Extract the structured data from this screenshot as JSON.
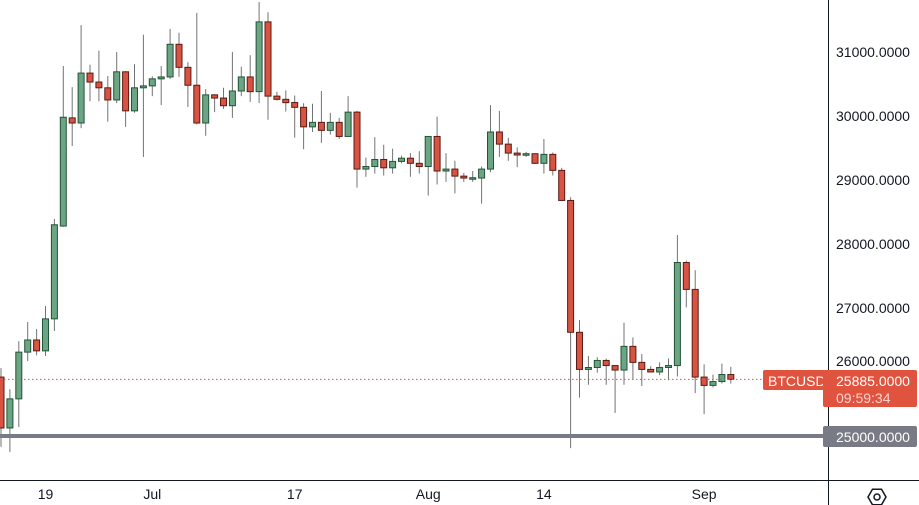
{
  "chart_data": {
    "type": "candlestick",
    "symbol": "BTCUSD",
    "last_price": "25885.0000",
    "countdown": "09:59:34",
    "horizontal_level": "25000.0000",
    "ylim": [
      24312,
      31812
    ],
    "y_ticks": [
      "31000.0000",
      "30000.0000",
      "29000.0000",
      "28000.0000",
      "27000.0000",
      "26000.0000"
    ],
    "y_tick_values": [
      31000,
      30000,
      29000,
      28000,
      27000,
      26000
    ],
    "x_ticks": [
      {
        "label": "19",
        "date": "2023-06-19"
      },
      {
        "label": "Jul",
        "date": "2023-07-01"
      },
      {
        "label": "17",
        "date": "2023-07-17"
      },
      {
        "label": "Aug",
        "date": "2023-08-01"
      },
      {
        "label": "14",
        "date": "2023-08-14"
      },
      {
        "label": "Sep",
        "date": "2023-09-01"
      }
    ],
    "grid": false,
    "colors": {
      "up": "#6ba583",
      "up_border": "#225437",
      "down": "#d75442",
      "down_border": "#5b1a13",
      "wick": "#737375",
      "level_line": "#787b86",
      "price_label": "#e0533f",
      "axis_text": "#131722"
    },
    "candles_columns": [
      "date",
      "open",
      "high",
      "low",
      "close"
    ],
    "candles": [
      [
        "2023-06-14",
        25920,
        26060,
        24830,
        25125
      ],
      [
        "2023-06-15",
        25125,
        25730,
        24750,
        25580
      ],
      [
        "2023-06-16",
        25580,
        26480,
        25140,
        26310
      ],
      [
        "2023-06-17",
        26310,
        26780,
        26170,
        26500
      ],
      [
        "2023-06-18",
        26500,
        26670,
        26260,
        26330
      ],
      [
        "2023-06-19",
        26330,
        27030,
        26250,
        26830
      ],
      [
        "2023-06-20",
        26830,
        28390,
        26640,
        28300
      ],
      [
        "2023-06-21",
        28280,
        30780,
        28270,
        29980
      ],
      [
        "2023-06-22",
        29970,
        30450,
        29530,
        29890
      ],
      [
        "2023-06-23",
        29890,
        31420,
        29810,
        30670
      ],
      [
        "2023-06-24",
        30670,
        30800,
        30230,
        30530
      ],
      [
        "2023-06-25",
        30530,
        31020,
        30230,
        30440
      ],
      [
        "2023-06-26",
        30440,
        30625,
        29910,
        30250
      ],
      [
        "2023-06-27",
        30250,
        31000,
        30200,
        30690
      ],
      [
        "2023-06-28",
        30690,
        30700,
        29830,
        30080
      ],
      [
        "2023-06-29",
        30080,
        30810,
        30050,
        30440
      ],
      [
        "2023-06-30",
        30440,
        31270,
        29360,
        30470
      ],
      [
        "2023-07-01",
        30470,
        30620,
        30310,
        30580
      ],
      [
        "2023-07-02",
        30580,
        30780,
        30170,
        30610
      ],
      [
        "2023-07-03",
        30610,
        31360,
        30580,
        31120
      ],
      [
        "2023-07-04",
        31120,
        31300,
        30610,
        30760
      ],
      [
        "2023-07-05",
        30760,
        30840,
        30140,
        30480
      ],
      [
        "2023-07-06",
        30480,
        31610,
        29870,
        29890
      ],
      [
        "2023-07-07",
        29890,
        30420,
        29690,
        30330
      ],
      [
        "2023-07-08",
        30330,
        30340,
        30060,
        30280
      ],
      [
        "2023-07-09",
        30280,
        30440,
        30110,
        30160
      ],
      [
        "2023-07-10",
        30160,
        31000,
        29970,
        30390
      ],
      [
        "2023-07-11",
        30390,
        30770,
        30310,
        30610
      ],
      [
        "2023-07-12",
        30610,
        30950,
        30220,
        30380
      ],
      [
        "2023-07-13",
        30380,
        31780,
        30200,
        31470
      ],
      [
        "2023-07-14",
        31470,
        31620,
        29940,
        30310
      ],
      [
        "2023-07-15",
        30310,
        30380,
        30240,
        30260
      ],
      [
        "2023-07-16",
        30260,
        30400,
        30070,
        30208
      ],
      [
        "2023-07-17",
        30210,
        30320,
        29660,
        30135
      ],
      [
        "2023-07-18",
        30135,
        30200,
        29480,
        29830
      ],
      [
        "2023-07-19",
        29830,
        30190,
        29750,
        29900
      ],
      [
        "2023-07-20",
        29900,
        30390,
        29580,
        29775
      ],
      [
        "2023-07-21",
        29775,
        30050,
        29710,
        29900
      ],
      [
        "2023-07-22",
        29900,
        29970,
        29640,
        29680
      ],
      [
        "2023-07-23",
        29680,
        30310,
        29680,
        30060
      ],
      [
        "2023-07-24",
        30060,
        30080,
        28880,
        29170
      ],
      [
        "2023-07-25",
        29170,
        29350,
        29050,
        29210
      ],
      [
        "2023-07-26",
        29210,
        29670,
        29100,
        29320
      ],
      [
        "2023-07-27",
        29320,
        29550,
        29070,
        29190
      ],
      [
        "2023-07-28",
        29190,
        29490,
        29100,
        29290
      ],
      [
        "2023-07-29",
        29290,
        29380,
        29260,
        29340
      ],
      [
        "2023-07-30",
        29340,
        29420,
        29050,
        29260
      ],
      [
        "2023-07-31",
        29260,
        29450,
        29100,
        29210
      ],
      [
        "2023-08-01",
        29210,
        29680,
        28755,
        29680
      ],
      [
        "2023-08-02",
        29680,
        29990,
        28930,
        29140
      ],
      [
        "2023-08-03",
        29140,
        29420,
        28970,
        29170
      ],
      [
        "2023-08-04",
        29170,
        29300,
        28790,
        29060
      ],
      [
        "2023-08-05",
        29060,
        29110,
        28970,
        29030
      ],
      [
        "2023-08-06",
        29030,
        29140,
        28970,
        29035
      ],
      [
        "2023-08-07",
        29030,
        29210,
        28630,
        29170
      ],
      [
        "2023-08-08",
        29170,
        30170,
        29120,
        29750
      ],
      [
        "2023-08-09",
        29750,
        30080,
        29360,
        29560
      ],
      [
        "2023-08-10",
        29560,
        29660,
        29300,
        29420
      ],
      [
        "2023-08-11",
        29420,
        29510,
        29200,
        29390
      ],
      [
        "2023-08-12",
        29390,
        29440,
        29360,
        29410
      ],
      [
        "2023-08-13",
        29410,
        29420,
        29250,
        29260
      ],
      [
        "2023-08-14",
        29260,
        29640,
        29100,
        29400
      ],
      [
        "2023-08-15",
        29400,
        29430,
        29070,
        29150
      ],
      [
        "2023-08-16",
        29150,
        29190,
        28680,
        28680
      ],
      [
        "2023-08-17",
        28680,
        28730,
        24810,
        26620
      ],
      [
        "2023-08-18",
        26620,
        26810,
        25600,
        26040
      ],
      [
        "2023-08-19",
        26040,
        26250,
        25800,
        26070
      ],
      [
        "2023-08-20",
        26070,
        26230,
        25990,
        26180
      ],
      [
        "2023-08-21",
        26180,
        26210,
        25800,
        26100
      ],
      [
        "2023-08-22",
        26100,
        26100,
        25360,
        26030
      ],
      [
        "2023-08-23",
        26030,
        26770,
        25800,
        26400
      ],
      [
        "2023-08-24",
        26400,
        26540,
        25890,
        26150
      ],
      [
        "2023-08-25",
        26150,
        26280,
        25780,
        26040
      ],
      [
        "2023-08-26",
        26040,
        26090,
        26000,
        26000
      ],
      [
        "2023-08-27",
        26000,
        26150,
        25950,
        26070
      ],
      [
        "2023-08-28",
        26070,
        26210,
        25870,
        26100
      ],
      [
        "2023-08-29",
        26100,
        28140,
        25930,
        27710
      ],
      [
        "2023-08-30",
        27710,
        27740,
        27010,
        27290
      ],
      [
        "2023-08-31",
        27290,
        27590,
        25670,
        25920
      ],
      [
        "2023-09-01",
        25920,
        26120,
        25340,
        25790
      ],
      [
        "2023-09-02",
        25790,
        25960,
        25760,
        25850
      ],
      [
        "2023-09-03",
        25850,
        26130,
        25820,
        25960
      ],
      [
        "2023-09-04",
        25960,
        26080,
        25820,
        25885
      ]
    ]
  },
  "icons": {
    "settings": "gear-icon"
  }
}
